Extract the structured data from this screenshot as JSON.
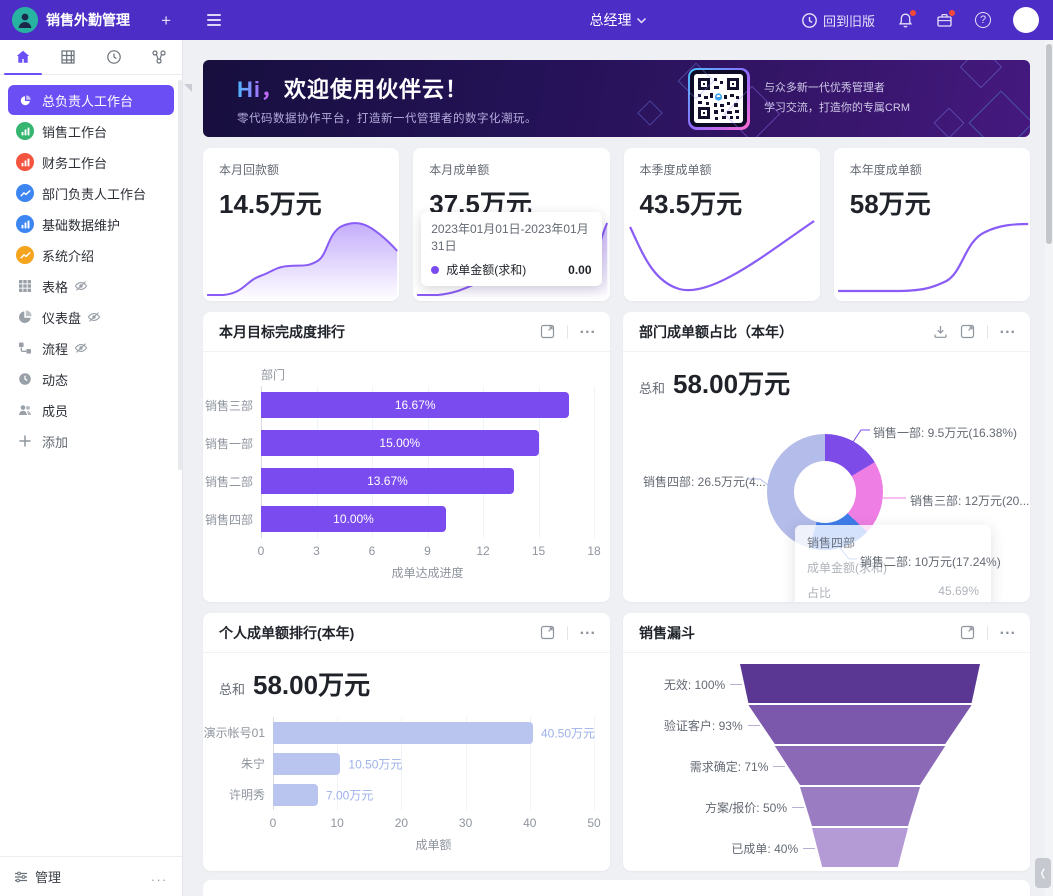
{
  "navbar": {
    "app_title": "销售外勤管理",
    "role_selector": "总经理",
    "back_to_old_label": "回到旧版"
  },
  "sidebar": {
    "items": [
      {
        "label": "总负责人工作台",
        "icon": "pie-chart-icon",
        "active": true
      },
      {
        "label": "销售工作台",
        "icon": "bar-chart-icon",
        "icon_color": "#35b56f"
      },
      {
        "label": "财务工作台",
        "icon": "bar-chart-icon",
        "icon_color": "#f4533e"
      },
      {
        "label": "部门负责人工作台",
        "icon": "line-chart-icon",
        "icon_color": "#3d86f2"
      },
      {
        "label": "基础数据维护",
        "icon": "bar-chart-icon",
        "icon_color": "#3d86f2"
      },
      {
        "label": "系统介绍",
        "icon": "line-chart-icon",
        "icon_color": "#f5a41d"
      },
      {
        "label": "表格",
        "icon": "table-icon",
        "hidden": true
      },
      {
        "label": "仪表盘",
        "icon": "dashboard-icon",
        "hidden": true
      },
      {
        "label": "流程",
        "icon": "flow-icon",
        "hidden": true
      },
      {
        "label": "动态",
        "icon": "activity-icon"
      },
      {
        "label": "成员",
        "icon": "members-icon"
      },
      {
        "label": "添加",
        "icon": "plus-icon",
        "is_add": true
      }
    ],
    "footer_label": "管理"
  },
  "banner": {
    "greeting_hi": "Hi，",
    "greeting_rest": "欢迎使用伙伴云！",
    "subtitle": "零代码数据协作平台，打造新一代管理者的数字化潮玩。",
    "qr_caption_line1": "与众多新一代优秀管理者",
    "qr_caption_line2": "学习交流，打造你的专属CRM"
  },
  "stat_cards": [
    {
      "label": "本月回款额",
      "value": "14.5万元"
    },
    {
      "label": "本月成单额",
      "value": "37.5万元",
      "tooltip": {
        "date_range": "2023年01月01日-2023年01月31日",
        "series_label": "成单金额(求和)",
        "series_value": "0.00"
      }
    },
    {
      "label": "本季度成单额",
      "value": "43.5万元"
    },
    {
      "label": "本年度成单额",
      "value": "58万元"
    }
  ],
  "chart_data": [
    {
      "type": "bar",
      "orientation": "horizontal",
      "title": "本月目标完成度排行",
      "categories": [
        "销售三部",
        "销售一部",
        "销售二部",
        "销售四部"
      ],
      "values": [
        16.67,
        15.0,
        13.67,
        10.0
      ],
      "bar_labels": [
        "16.67%",
        "15.00%",
        "13.67%",
        "10.00%"
      ],
      "xlabel": "成单达成进度",
      "ylabel": "部门",
      "xlim": [
        0,
        18
      ],
      "xticks": [
        0,
        3,
        6,
        9,
        12,
        15,
        18
      ],
      "bar_color": "#7a4bef"
    },
    {
      "type": "pie",
      "title": "部门成单额占比（本年）",
      "total_label": "总和",
      "total_value": "58.00万元",
      "slices": [
        {
          "name": "销售一部",
          "value": 9.5,
          "pct": 16.38,
          "label": "销售一部: 9.5万元(16.38%)",
          "color": "#7c4be8"
        },
        {
          "name": "销售三部",
          "value": 12,
          "pct": 20.69,
          "label": "销售三部: 12万元(20....",
          "color": "#ef7ee4"
        },
        {
          "name": "销售二部",
          "value": 10,
          "pct": 17.24,
          "label": "销售二部: 10万元(17.24%)",
          "color": "#3f7dea"
        },
        {
          "name": "销售四部",
          "value": 26.5,
          "pct": 45.69,
          "label": "销售四部: 26.5万元(4...",
          "color": "#b4bdea"
        }
      ],
      "tooltip": {
        "title": "销售四部",
        "row1_label": "成单金额(求和)",
        "row2_label": "占比",
        "row2_value": "45.69%"
      }
    },
    {
      "type": "bar",
      "orientation": "horizontal",
      "title": "个人成单额排行(本年)",
      "total_label": "总和",
      "total_value": "58.00万元",
      "categories": [
        "演示帐号01",
        "朱宁",
        "许明秀"
      ],
      "values": [
        40.5,
        10.5,
        7.0
      ],
      "bar_labels": [
        "40.50万元",
        "10.50万元",
        "7.00万元"
      ],
      "xlabel": "成单额",
      "xlim": [
        0,
        50
      ],
      "xticks": [
        0,
        10,
        20,
        30,
        40,
        50
      ],
      "bar_color": "#b9c4ef"
    },
    {
      "type": "funnel",
      "title": "销售漏斗",
      "stages": [
        {
          "label": "无效: 100%",
          "pct": 100,
          "color": "#5b3794"
        },
        {
          "label": "验证客户: 93%",
          "pct": 93,
          "color": "#7c58ac"
        },
        {
          "label": "需求确定: 71%",
          "pct": 71,
          "color": "#8b69b7"
        },
        {
          "label": "方案/报价: 50%",
          "pct": 50,
          "color": "#9a7cc3"
        },
        {
          "label": "已成单: 40%",
          "pct": 40,
          "color": "#b49bd6"
        }
      ]
    }
  ]
}
